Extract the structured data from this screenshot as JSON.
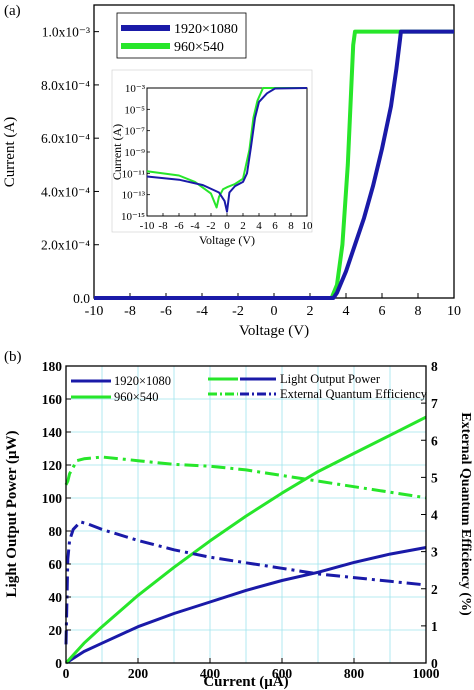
{
  "chart_data": [
    {
      "panel": "(a)",
      "type": "line",
      "xlabel": "Voltage (V)",
      "ylabel": "Current (A)",
      "xlim": [
        -10,
        10
      ],
      "ylim": [
        0,
        0.0011
      ],
      "xticks": [
        -10,
        -8,
        -6,
        -4,
        -2,
        0,
        2,
        4,
        6,
        8,
        10
      ],
      "yticks": [
        {
          "value": 0,
          "label": "0.0"
        },
        {
          "value": 0.0002,
          "label": "2.0x10⁻⁴"
        },
        {
          "value": 0.0004,
          "label": "4.0x10⁻⁴"
        },
        {
          "value": 0.0006,
          "label": "6.0x10⁻⁴"
        },
        {
          "value": 0.0008,
          "label": "8.0x10⁻⁴"
        },
        {
          "value": 0.001,
          "label": "1.0x10⁻³"
        }
      ],
      "grid": false,
      "legend_position": "top-left",
      "series": [
        {
          "name": "1920×1080",
          "color": "#1a1aa8",
          "x": [
            -10,
            3.3,
            3.5,
            4.0,
            4.5,
            5.0,
            5.5,
            6.0,
            6.5,
            6.8,
            7.0,
            7.05,
            10
          ],
          "y": [
            0,
            0,
            2e-05,
            0.0001,
            0.0002,
            0.0003,
            0.00042,
            0.00056,
            0.00072,
            0.00086,
            0.00097,
            0.001,
            0.001
          ]
        },
        {
          "name": "960×540",
          "color": "#27e62a",
          "x": [
            -10,
            3.2,
            3.5,
            3.8,
            4.1,
            4.3,
            4.4,
            4.5,
            10
          ],
          "y": [
            0,
            0,
            5e-05,
            0.0002,
            0.0005,
            0.0008,
            0.00095,
            0.001,
            0.001
          ]
        }
      ],
      "inset": {
        "type": "line",
        "scale": "log-y",
        "xlabel": "Voltage (V)",
        "ylabel": "Current (A)",
        "xlim": [
          -10,
          10
        ],
        "ylim_exp": [
          -15,
          -3
        ],
        "xticks": [
          -10,
          -8,
          -6,
          -4,
          -2,
          0,
          2,
          4,
          6,
          8,
          10
        ],
        "yticks": [
          {
            "exp": -3,
            "label": "10⁻³"
          },
          {
            "exp": -5,
            "label": "10⁻⁵"
          },
          {
            "exp": -7,
            "label": "10⁻⁷"
          },
          {
            "exp": -9,
            "label": "10⁻⁹"
          },
          {
            "exp": -11,
            "label": "10⁻¹¹"
          },
          {
            "exp": -13,
            "label": "10⁻¹³"
          },
          {
            "exp": -15,
            "label": "10⁻¹⁵"
          }
        ],
        "series": [
          {
            "name": "1920×1080",
            "color": "#1a1aa8",
            "x": [
              -10,
              -6,
              -3,
              -1,
              -0.3,
              0,
              0.3,
              1,
              2,
              2.5,
              3,
              3.5,
              4,
              5,
              6,
              10
            ],
            "y_exp": [
              -11.3,
              -11.6,
              -12.1,
              -12.8,
              -13.6,
              -14.6,
              -12.8,
              -12.2,
              -11.8,
              -11.0,
              -8.5,
              -5.8,
              -4.3,
              -3.5,
              -3.05,
              -3.0
            ]
          },
          {
            "name": "960×540",
            "color": "#27e62a",
            "x": [
              -10,
              -6,
              -4,
              -2,
              -1.3,
              -1,
              -0.5,
              0,
              1,
              2,
              2.8,
              3.3,
              3.8,
              4.5,
              10
            ],
            "y_exp": [
              -10.8,
              -11.2,
              -11.8,
              -12.9,
              -14.2,
              -13.2,
              -12.5,
              -12.3,
              -12.0,
              -11.5,
              -8.8,
              -5.8,
              -4.2,
              -3.0,
              -3.0
            ]
          }
        ]
      }
    },
    {
      "panel": "(b)",
      "type": "line",
      "xlabel": "Current (μA)",
      "ylabel": "Light Output Power (μW)",
      "y2label": "External Quantum Efficiency (%)",
      "xlim": [
        0,
        1000
      ],
      "ylim": [
        0,
        180
      ],
      "y2lim": [
        0,
        8
      ],
      "xticks": [
        0,
        200,
        400,
        600,
        800,
        1000
      ],
      "yticks": [
        0,
        20,
        40,
        60,
        80,
        100,
        120,
        140,
        160,
        180
      ],
      "y2ticks": [
        0,
        1,
        2,
        3,
        4,
        5,
        6,
        7,
        8
      ],
      "grid": true,
      "legend_position": "top",
      "legend_colors": [
        {
          "name": "1920×1080",
          "color": "#1a1aa8"
        },
        {
          "name": "960×540",
          "color": "#27e62a"
        }
      ],
      "legend_styles": [
        {
          "name": "Light Output Power",
          "style": "solid"
        },
        {
          "name": "External Quantum Efficiency",
          "style": "dashdot"
        }
      ],
      "series": [
        {
          "name": "1920×1080",
          "quantity": "Light Output Power",
          "axis": "left",
          "style": "solid",
          "color": "#1a1aa8",
          "x": [
            0,
            50,
            100,
            200,
            300,
            400,
            500,
            600,
            700,
            800,
            900,
            1000
          ],
          "y": [
            0,
            7,
            12,
            22,
            30,
            37,
            44,
            50,
            55,
            61,
            66,
            70
          ]
        },
        {
          "name": "960×540",
          "quantity": "Light Output Power",
          "axis": "left",
          "style": "solid",
          "color": "#27e62a",
          "x": [
            0,
            50,
            100,
            200,
            300,
            400,
            500,
            600,
            700,
            800,
            900,
            1000
          ],
          "y": [
            0,
            12,
            22,
            41,
            58,
            74,
            89,
            103,
            116,
            127,
            138,
            149
          ]
        },
        {
          "name": "1920×1080",
          "quantity": "External Quantum Efficiency",
          "axis": "right",
          "style": "dashdot",
          "color": "#1a1aa8",
          "x": [
            0,
            5,
            10,
            20,
            40,
            60,
            100,
            200,
            300,
            400,
            500,
            600,
            700,
            800,
            900,
            1000
          ],
          "y": [
            0.5,
            2.8,
            3.3,
            3.6,
            3.8,
            3.75,
            3.6,
            3.3,
            3.05,
            2.85,
            2.7,
            2.55,
            2.4,
            2.3,
            2.2,
            2.1
          ]
        },
        {
          "name": "960×540",
          "quantity": "External Quantum Efficiency",
          "axis": "right",
          "style": "dashdot",
          "color": "#27e62a",
          "x": [
            0,
            5,
            10,
            30,
            50,
            100,
            150,
            200,
            300,
            400,
            500,
            600,
            700,
            800,
            900,
            1000
          ],
          "y": [
            4.8,
            4.9,
            5.1,
            5.45,
            5.5,
            5.55,
            5.5,
            5.45,
            5.35,
            5.3,
            5.2,
            5.05,
            4.9,
            4.75,
            4.6,
            4.45
          ]
        }
      ]
    }
  ]
}
